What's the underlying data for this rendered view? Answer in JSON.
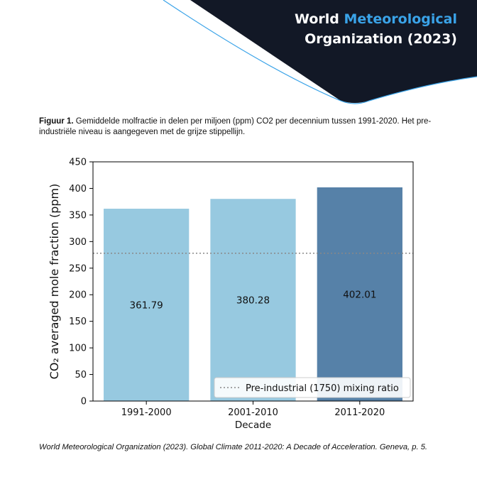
{
  "header": {
    "brand_prefix": "World ",
    "brand_accent": "Meteorological",
    "brand_line2": "Organization (2023)"
  },
  "caption": {
    "label": "Figuur 1.",
    "text": " Gemiddelde molfractie in delen per miljoen (ppm) CO2 per decennium tussen 1991-2020. Het pre-industriële niveau is aangegeven met de grijze stippellijn."
  },
  "source": "World Meteorological Organization (2023). Global Climate 2011-2020: A Decade of Acceleration. Geneva, p. 5.",
  "colors": {
    "banner": "#121826",
    "accent": "#3aa3e8",
    "bar_light": "#97c9e0",
    "bar_dark": "#5681a8",
    "reference_line": "#888888"
  },
  "chart_data": {
    "type": "bar",
    "title": "",
    "xlabel": "Decade",
    "ylabel": "CO₂ averaged mole fraction (ppm)",
    "categories": [
      "1991-2000",
      "2001-2010",
      "2011-2020"
    ],
    "values": [
      361.79,
      380.28,
      402.01
    ],
    "value_labels": [
      "361.79",
      "380.28",
      "402.01"
    ],
    "bar_colors": [
      "#97c9e0",
      "#97c9e0",
      "#5681a8"
    ],
    "ylim": [
      0,
      450
    ],
    "yticks": [
      0,
      50,
      100,
      150,
      200,
      250,
      300,
      350,
      400,
      450
    ],
    "reference_line": {
      "value": 278,
      "label": "Pre-industrial (1750) mixing ratio",
      "style": "dotted"
    },
    "legend": {
      "position": "bottom-right",
      "entries": [
        "Pre-industrial (1750) mixing ratio"
      ]
    },
    "grid": false
  }
}
